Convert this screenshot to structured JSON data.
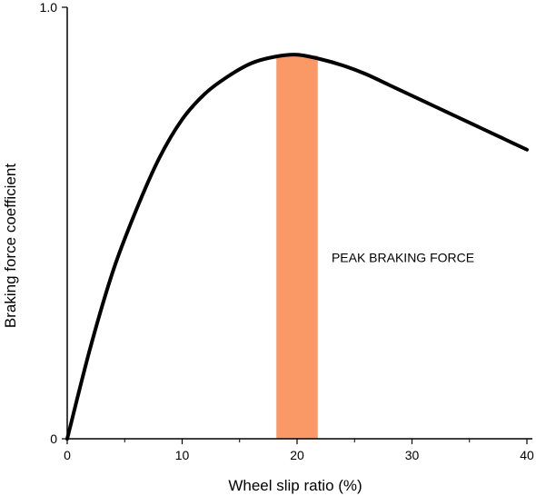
{
  "chart_data": {
    "type": "line",
    "xlabel": "Wheel slip ratio (%)",
    "ylabel": "Braking force coefficient",
    "xlim": [
      0,
      40
    ],
    "ylim": [
      0,
      1.0
    ],
    "x_ticks": [
      0,
      10,
      20,
      30,
      40
    ],
    "x_minor_ticks": [
      5,
      15,
      25,
      35
    ],
    "x_tick_labels": [
      "0",
      "10",
      "20",
      "30",
      "40"
    ],
    "y_ticks": [
      0,
      1.0
    ],
    "y_tick_labels": [
      "0",
      "1.0"
    ],
    "grid": false,
    "series": [
      {
        "x": [
          0,
          2,
          4,
          6,
          8,
          10,
          12,
          14,
          16,
          18,
          20,
          22,
          24,
          26,
          28,
          30,
          32,
          34,
          36,
          38,
          40
        ],
        "y": [
          0,
          0.21,
          0.39,
          0.53,
          0.65,
          0.74,
          0.8,
          0.84,
          0.87,
          0.885,
          0.89,
          0.88,
          0.865,
          0.845,
          0.82,
          0.795,
          0.77,
          0.745,
          0.72,
          0.695,
          0.67
        ],
        "color": "#000000"
      }
    ],
    "highlight_band": {
      "x_range": [
        18.2,
        21.8
      ],
      "color": "#fa9966"
    },
    "annotations": [
      {
        "text": "PEAK BRAKING FORCE",
        "x": 23,
        "y": 0.41
      }
    ]
  }
}
